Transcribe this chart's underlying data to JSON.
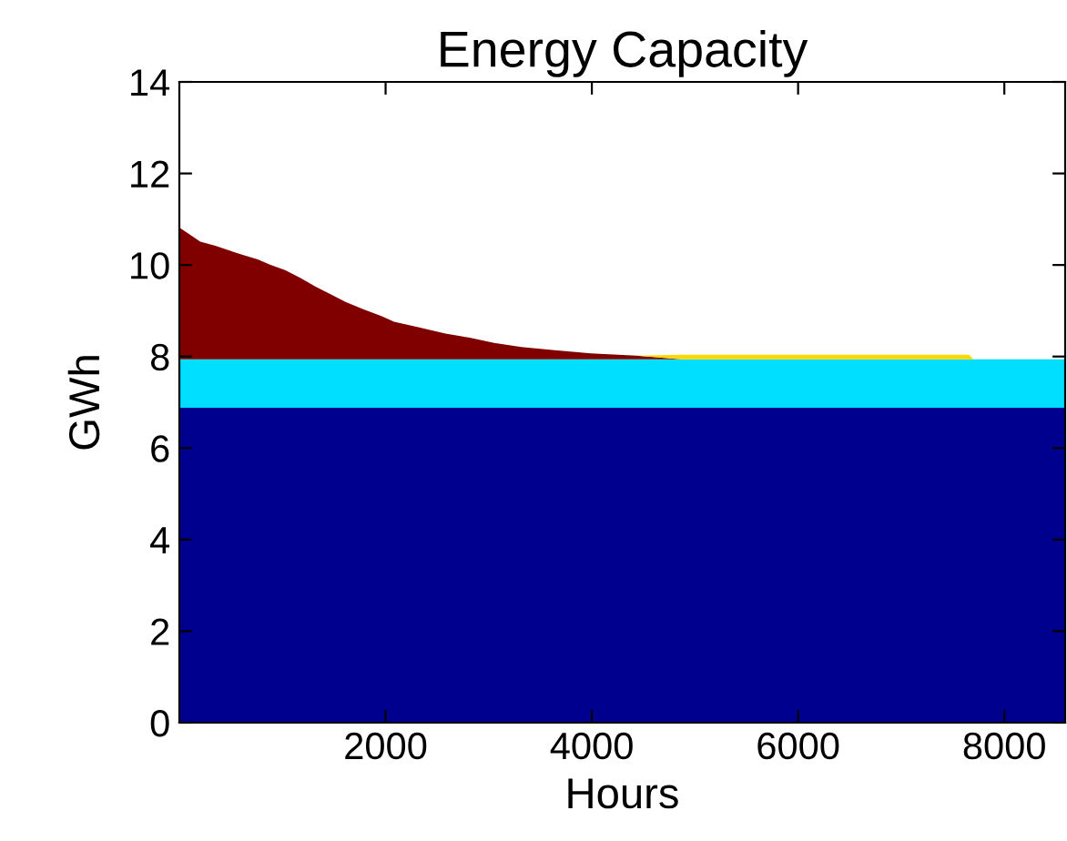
{
  "chart_data": {
    "type": "area",
    "stacked": true,
    "title": "Energy Capacity",
    "xlabel": "Hours",
    "ylabel": "GWh",
    "x": [
      0,
      203,
      349,
      467,
      614,
      761,
      878,
      1025,
      1172,
      1318,
      1466,
      1612,
      1789,
      1965,
      2082,
      2317,
      2581,
      2816,
      3052,
      3316,
      3639,
      3991,
      4432,
      4872,
      5500,
      6500,
      7657,
      7700,
      8590
    ],
    "series": [
      {
        "color": "#00008f",
        "values": [
          6.88,
          6.88,
          6.88,
          6.88,
          6.88,
          6.88,
          6.88,
          6.88,
          6.88,
          6.88,
          6.88,
          6.88,
          6.88,
          6.88,
          6.88,
          6.88,
          6.88,
          6.88,
          6.88,
          6.88,
          6.88,
          6.88,
          6.88,
          6.88,
          6.88,
          6.88,
          6.88,
          6.88,
          6.88
        ]
      },
      {
        "color": "#00dfff",
        "values": [
          1.06,
          1.06,
          1.06,
          1.06,
          1.06,
          1.06,
          1.06,
          1.06,
          1.06,
          1.06,
          1.06,
          1.06,
          1.06,
          1.06,
          1.06,
          1.06,
          1.06,
          1.06,
          1.06,
          1.06,
          1.06,
          1.06,
          1.06,
          1.06,
          1.06,
          1.06,
          1.06,
          1.06,
          1.06
        ]
      },
      {
        "color": "#800000",
        "values": [
          2.88,
          2.57,
          2.48,
          2.39,
          2.28,
          2.18,
          2.07,
          1.95,
          1.78,
          1.59,
          1.42,
          1.25,
          1.09,
          0.94,
          0.82,
          0.7,
          0.56,
          0.47,
          0.36,
          0.27,
          0.2,
          0.13,
          0.08,
          0,
          null,
          null,
          null,
          null,
          null
        ]
      },
      {
        "color": "#ffd700",
        "values": [
          null,
          null,
          null,
          null,
          null,
          null,
          null,
          null,
          null,
          null,
          null,
          null,
          null,
          null,
          null,
          null,
          null,
          null,
          null,
          null,
          null,
          null,
          0,
          0.1,
          0.1,
          0.1,
          0.1,
          0,
          null
        ]
      }
    ],
    "xlim": [
      0,
      8590
    ],
    "ylim": [
      0,
      14
    ],
    "xticks": [
      2000,
      4000,
      6000,
      8000
    ],
    "yticks": [
      0,
      2,
      4,
      6,
      8,
      10,
      12,
      14
    ]
  }
}
